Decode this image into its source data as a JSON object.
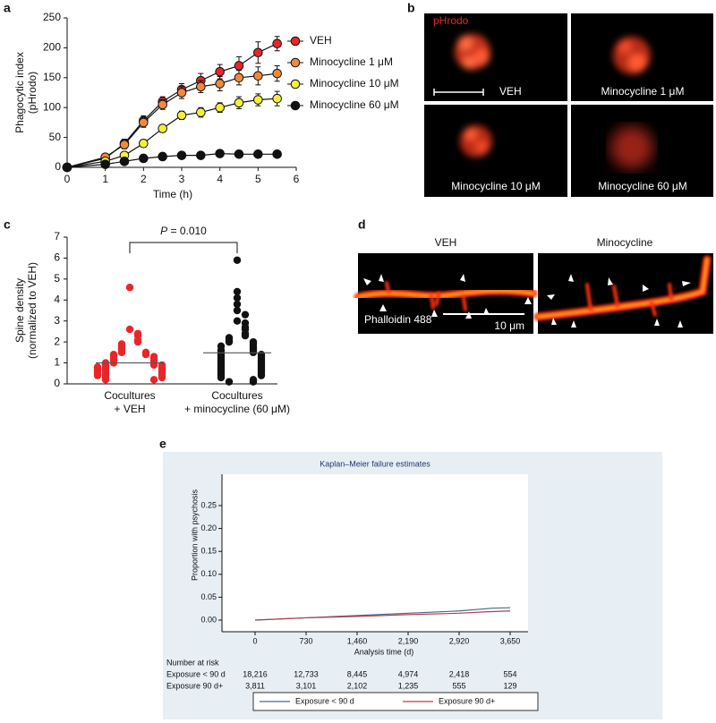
{
  "chart_data": [
    {
      "type": "line",
      "label": "a",
      "x": [
        0,
        1,
        1.5,
        2,
        2.5,
        3,
        3.5,
        4,
        4.5,
        5,
        5.5
      ],
      "xlim": [
        0,
        6
      ],
      "xticks": [
        0,
        1,
        2,
        3,
        4,
        5,
        6
      ],
      "ylim": [
        0,
        250
      ],
      "yticks": [
        0,
        50,
        100,
        150,
        200,
        250
      ],
      "x_label": "Time (h)",
      "y_label": [
        "Phagocytic index",
        "(pHrodo)"
      ],
      "series": [
        {
          "name": "VEH",
          "color": "#e8262a",
          "values": [
            0,
            15,
            40,
            78,
            110,
            130,
            145,
            160,
            170,
            192,
            207
          ],
          "errors": [
            0,
            5,
            7,
            8,
            8,
            10,
            12,
            12,
            15,
            18,
            12
          ]
        },
        {
          "name": "Minocycline 1 μM",
          "color": "#f08a3a",
          "values": [
            0,
            17,
            38,
            75,
            105,
            125,
            135,
            140,
            150,
            153,
            157
          ],
          "errors": [
            0,
            5,
            7,
            8,
            8,
            10,
            10,
            12,
            12,
            15,
            13
          ]
        },
        {
          "name": "Minocycline 10 μM",
          "color": "#f3ef3a",
          "values": [
            0,
            10,
            20,
            40,
            65,
            87,
            92,
            100,
            108,
            113,
            115
          ],
          "errors": [
            0,
            3,
            5,
            6,
            6,
            7,
            8,
            8,
            10,
            10,
            12
          ]
        },
        {
          "name": "Minocycline 60 μM",
          "color": "#111111",
          "values": [
            0,
            5,
            10,
            15,
            18,
            20,
            20,
            23,
            22,
            22,
            22
          ],
          "errors": [
            0,
            2,
            2,
            3,
            3,
            3,
            3,
            3,
            3,
            3,
            3
          ]
        }
      ]
    },
    {
      "type": "strip",
      "label": "c",
      "categories": [
        [
          "Cocultures",
          "+ VEH"
        ],
        [
          "Cocultures",
          "+ minocycline (60 μM)"
        ]
      ],
      "ylim": [
        0,
        7
      ],
      "yticks": [
        0,
        1,
        2,
        3,
        4,
        5,
        6,
        7
      ],
      "y_label": [
        "Spine density",
        "(normalized to VEH)"
      ],
      "annotation": {
        "italic": "P",
        "text": " = 0.010"
      },
      "series": [
        {
          "color": "#e8262a",
          "mean": 1.0,
          "values": [
            4.6,
            2.6,
            2.4,
            2.3,
            2.1,
            2.0,
            1.9,
            1.8,
            1.7,
            1.6,
            1.5,
            1.5,
            1.4,
            1.4,
            1.3,
            1.3,
            1.2,
            1.2,
            1.1,
            1.1,
            1.0,
            1.0,
            1.0,
            0.9,
            0.9,
            0.9,
            0.8,
            0.8,
            0.8,
            0.7,
            0.7,
            0.7,
            0.6,
            0.6,
            0.6,
            0.5,
            0.5,
            0.5,
            0.4,
            0.4,
            0.4,
            0.3,
            0.3,
            0.2,
            0.2
          ]
        },
        {
          "color": "#111111",
          "mean": 1.48,
          "values": [
            5.9,
            4.4,
            4.1,
            3.8,
            3.5,
            3.3,
            3.0,
            2.9,
            2.7,
            2.6,
            2.4,
            2.3,
            2.2,
            2.1,
            2.0,
            2.0,
            1.9,
            1.8,
            1.8,
            1.7,
            1.6,
            1.6,
            1.5,
            1.5,
            1.4,
            1.4,
            1.3,
            1.3,
            1.2,
            1.2,
            1.1,
            1.1,
            1.0,
            1.0,
            0.9,
            0.9,
            0.8,
            0.8,
            0.7,
            0.7,
            0.6,
            0.6,
            0.5,
            0.5,
            0.4,
            0.4,
            0.3,
            0.2,
            0.1,
            0.1
          ]
        }
      ]
    },
    {
      "type": "km",
      "label": "e",
      "title": "Kaplan–Meier failure estimates",
      "x_label": "Analysis time (d)",
      "y_label": "Proportion with psychosis",
      "xlim": [
        0,
        3650
      ],
      "xticks": [
        0,
        730,
        {
          "value": 1460,
          "label": "1,460"
        },
        {
          "value": 2190,
          "label": "2,190"
        },
        {
          "value": 2920,
          "label": "2,920"
        },
        {
          "value": 3650,
          "label": "3,650"
        }
      ],
      "ylim": [
        0,
        0.25
      ],
      "yticks": [
        {
          "value": 0,
          "label": "0.00"
        },
        0.05,
        {
          "value": 0.1,
          "label": "0.10"
        },
        0.15,
        {
          "value": 0.2,
          "label": "0.20"
        },
        0.25
      ],
      "risk_table": {
        "title": "Number at risk",
        "rows": [
          {
            "name": "Exposure < 90 d",
            "counts": [
              "18,216",
              "12,733",
              "8,445",
              "4,974",
              "2,418",
              "554"
            ]
          },
          {
            "name": "Exposure 90 d+",
            "counts": [
              "3,811",
              "3,101",
              "2,102",
              "1,235",
              "555",
              "129"
            ]
          }
        ]
      },
      "series": [
        {
          "name": "Exposure < 90 d",
          "color": "#4a6a8c",
          "x": [
            0,
            730,
            1460,
            2190,
            2920,
            3400,
            3650
          ],
          "values": [
            0,
            0.005,
            0.01,
            0.015,
            0.02,
            0.026,
            0.027
          ]
        },
        {
          "name": "Exposure 90 d+",
          "color": "#b04050",
          "x": [
            0,
            730,
            1460,
            2190,
            2920,
            3300,
            3650
          ],
          "values": [
            0,
            0.005,
            0.008,
            0.012,
            0.015,
            0.018,
            0.02
          ]
        }
      ]
    }
  ],
  "images": [
    {
      "label": "b",
      "stain": "pHrodo",
      "panels": [
        "VEH",
        "Minocycline 1 μM",
        "Minocycline 10 μM",
        "Minocycline 60 μM"
      ]
    },
    {
      "label": "d",
      "panels": [
        "VEH",
        "Minocycline"
      ],
      "stain": "Phalloidin 488",
      "scale": "10 μm"
    }
  ]
}
